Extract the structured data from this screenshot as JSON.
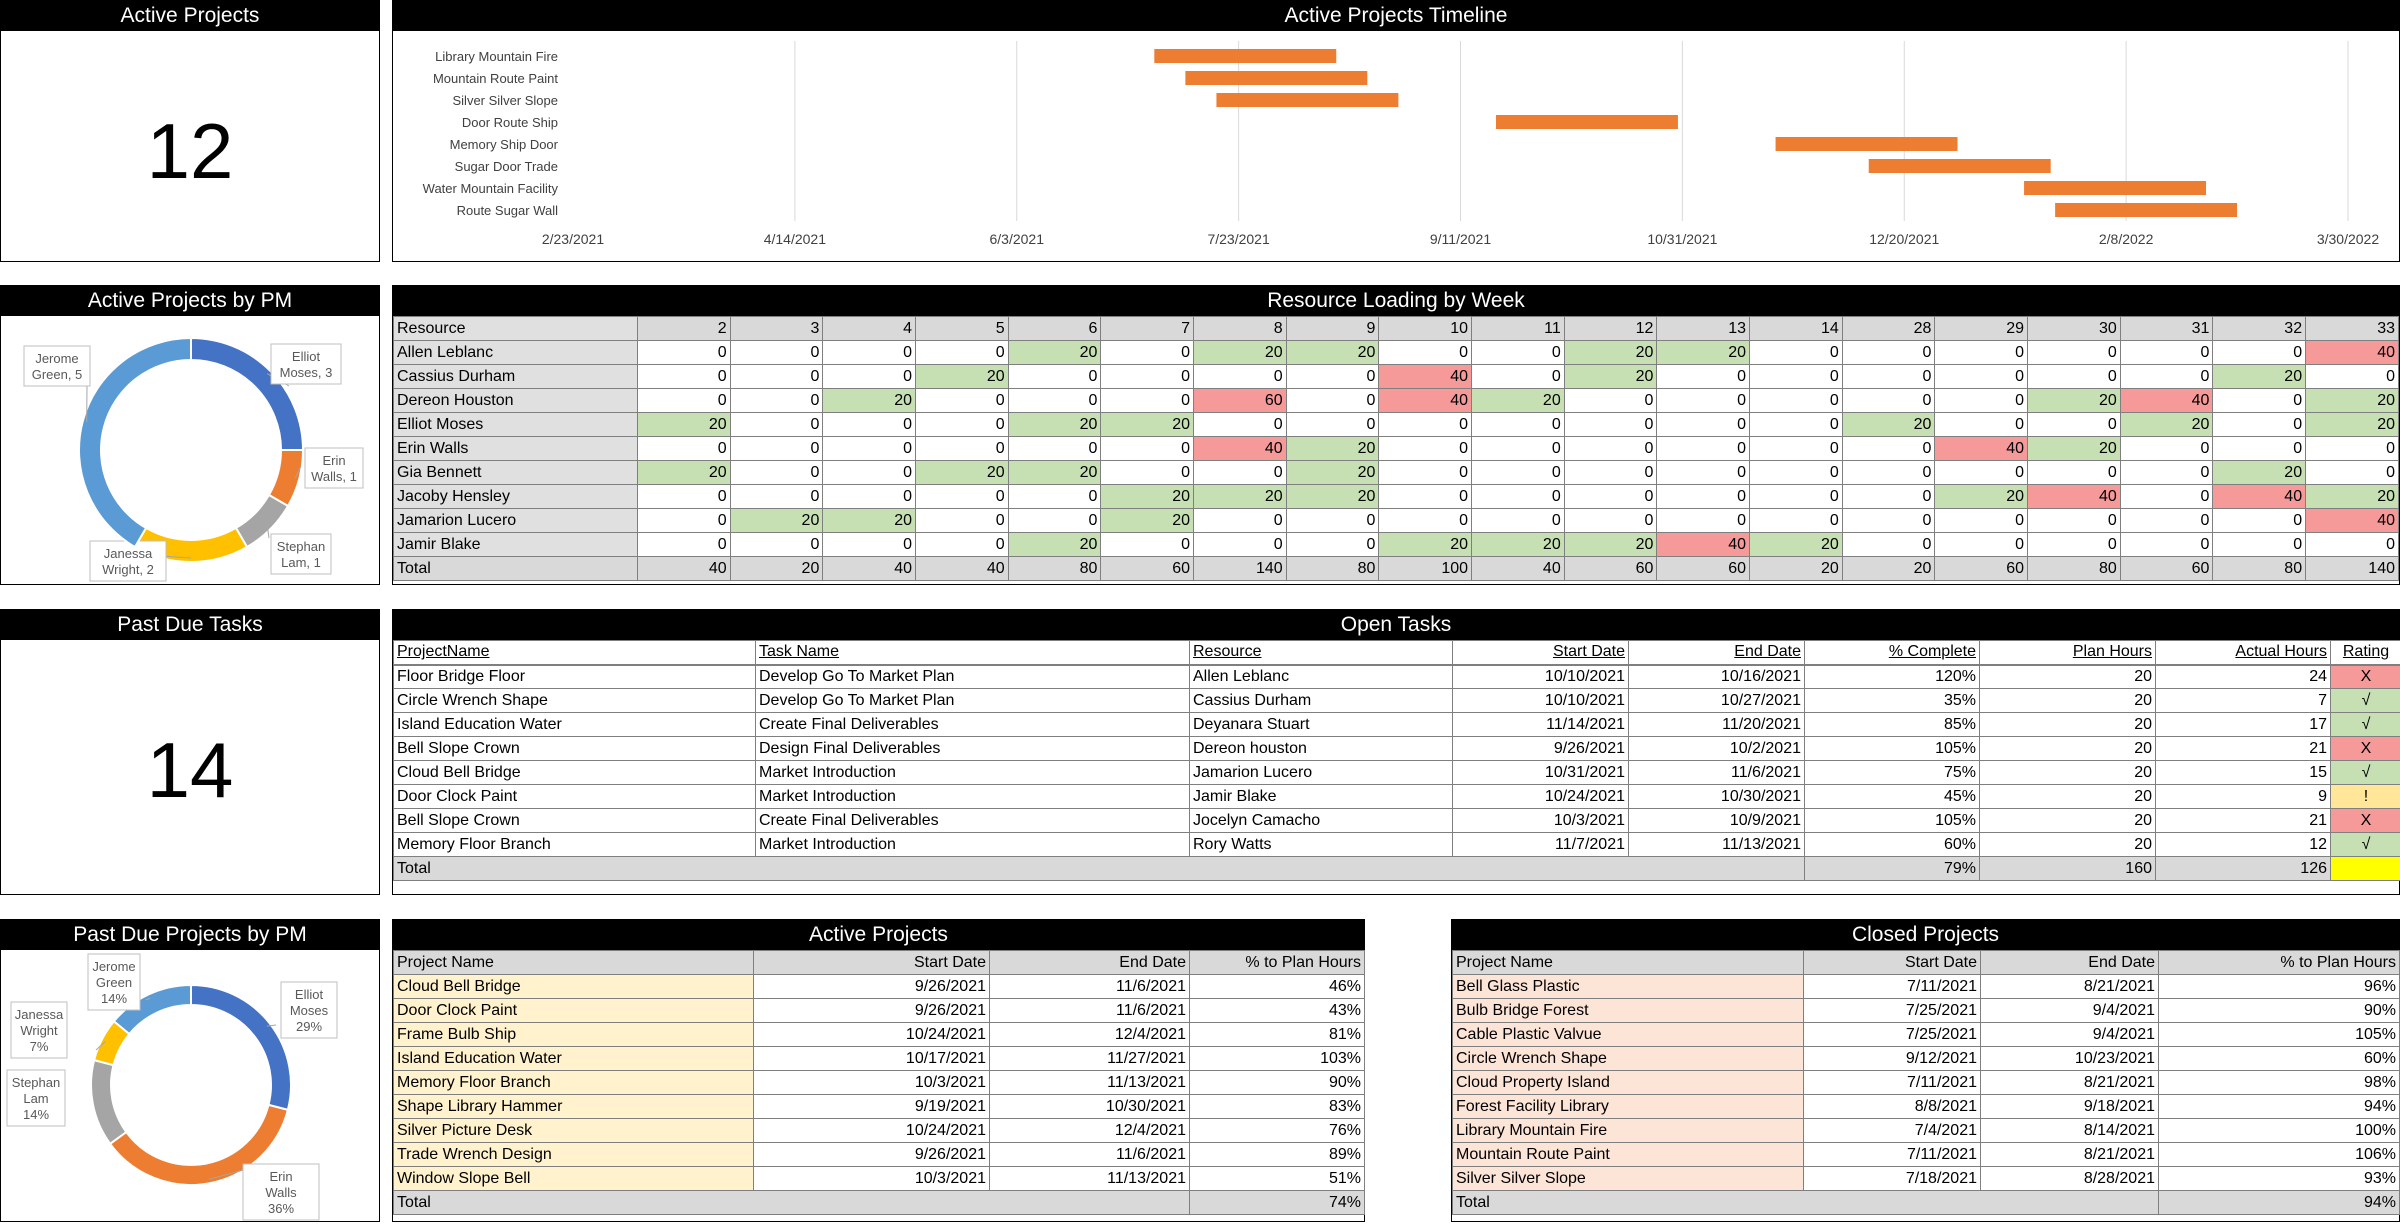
{
  "active_projects_card": {
    "title": "Active Projects",
    "value": "12"
  },
  "timeline": {
    "title": "Active Projects Timeline",
    "ticks": [
      "2/23/2021",
      "4/14/2021",
      "6/3/2021",
      "7/23/2021",
      "9/11/2021",
      "10/31/2021",
      "12/20/2021",
      "2/8/2022",
      "3/30/2022"
    ],
    "x_range": [
      "2021-02-23",
      "2022-03-30"
    ],
    "bar_color": "#ed7d31",
    "projects": [
      {
        "name": "Library Mountain Fire",
        "start": "2021-07-04",
        "end": "2021-08-14"
      },
      {
        "name": "Mountain Route Paint",
        "start": "2021-07-11",
        "end": "2021-08-21"
      },
      {
        "name": "Silver Silver Slope",
        "start": "2021-07-18",
        "end": "2021-08-28"
      },
      {
        "name": "Door Route Ship",
        "start": "2021-09-19",
        "end": "2021-10-30"
      },
      {
        "name": "Memory Ship Door",
        "start": "2021-11-21",
        "end": "2022-01-01"
      },
      {
        "name": "Sugar Door Trade",
        "start": "2021-12-12",
        "end": "2022-01-22"
      },
      {
        "name": "Water Mountain Facility",
        "start": "2022-01-16",
        "end": "2022-02-26"
      },
      {
        "name": "Route Sugar Wall",
        "start": "2022-01-23",
        "end": "2022-03-05"
      }
    ]
  },
  "pm_donut": {
    "title": "Active Projects by PM",
    "slices": [
      {
        "label": "Elliot Moses, 3",
        "value": 3,
        "color": "#4472c4"
      },
      {
        "label": "Erin Walls, 1",
        "value": 1,
        "color": "#ed7d31"
      },
      {
        "label": "Stephan Lam, 1",
        "value": 1,
        "color": "#a5a5a5"
      },
      {
        "label": "Janessa Wright, 2",
        "value": 2,
        "color": "#ffc000"
      },
      {
        "label": "Jerome Green, 5",
        "value": 5,
        "color": "#5b9bd5"
      }
    ]
  },
  "resource_loading": {
    "title": "Resource Loading by Week",
    "header": "Resource",
    "weeks": [
      "2",
      "3",
      "4",
      "5",
      "6",
      "7",
      "8",
      "9",
      "10",
      "11",
      "12",
      "13",
      "14",
      "28",
      "29",
      "30",
      "31",
      "32",
      "33"
    ],
    "rows": [
      {
        "name": "Allen Leblanc",
        "values": [
          0,
          0,
          0,
          0,
          20,
          0,
          20,
          20,
          0,
          0,
          20,
          20,
          0,
          0,
          0,
          0,
          0,
          0,
          40
        ]
      },
      {
        "name": "Cassius Durham",
        "values": [
          0,
          0,
          0,
          20,
          0,
          0,
          0,
          0,
          40,
          0,
          20,
          0,
          0,
          0,
          0,
          0,
          0,
          20,
          0
        ]
      },
      {
        "name": "Dereon Houston",
        "values": [
          0,
          0,
          20,
          0,
          0,
          0,
          60,
          0,
          40,
          20,
          0,
          0,
          0,
          0,
          0,
          20,
          40,
          0,
          20
        ]
      },
      {
        "name": "Elliot Moses",
        "values": [
          20,
          0,
          0,
          0,
          20,
          20,
          0,
          0,
          0,
          0,
          0,
          0,
          0,
          20,
          0,
          0,
          20,
          0,
          20
        ]
      },
      {
        "name": "Erin Walls",
        "values": [
          0,
          0,
          0,
          0,
          0,
          0,
          40,
          20,
          0,
          0,
          0,
          0,
          0,
          0,
          40,
          20,
          0,
          0,
          0
        ]
      },
      {
        "name": "Gia Bennett",
        "values": [
          20,
          0,
          0,
          20,
          20,
          0,
          0,
          20,
          0,
          0,
          0,
          0,
          0,
          0,
          0,
          0,
          0,
          20,
          0
        ]
      },
      {
        "name": "Jacoby Hensley",
        "values": [
          0,
          0,
          0,
          0,
          0,
          20,
          20,
          20,
          0,
          0,
          0,
          0,
          0,
          0,
          20,
          40,
          0,
          40,
          20
        ]
      },
      {
        "name": "Jamarion Lucero",
        "values": [
          0,
          20,
          20,
          0,
          0,
          20,
          0,
          0,
          0,
          0,
          0,
          0,
          0,
          0,
          0,
          0,
          0,
          0,
          40
        ]
      },
      {
        "name": "Jamir Blake",
        "values": [
          0,
          0,
          0,
          0,
          20,
          0,
          0,
          0,
          20,
          20,
          20,
          40,
          20,
          0,
          0,
          0,
          0,
          0,
          0
        ]
      }
    ],
    "total_label": "Total",
    "totals": [
      40,
      20,
      40,
      40,
      80,
      60,
      140,
      80,
      100,
      40,
      60,
      60,
      20,
      20,
      60,
      80,
      60,
      80,
      140
    ]
  },
  "past_due_card": {
    "title": "Past Due Tasks",
    "value": "14"
  },
  "open_tasks": {
    "title": "Open Tasks",
    "headers": [
      "ProjectName",
      "Task Name",
      "Resource",
      "Start Date",
      "End Date",
      "% Complete",
      "Plan Hours",
      "Actual Hours",
      "Rating"
    ],
    "rows": [
      [
        "Floor Bridge Floor",
        "Develop Go To Market Plan",
        "Allen Leblanc",
        "10/10/2021",
        "10/16/2021",
        "120%",
        "20",
        "24",
        "X"
      ],
      [
        "Circle Wrench Shape",
        "Develop Go To Market Plan",
        "Cassius Durham",
        "10/10/2021",
        "10/27/2021",
        "35%",
        "20",
        "7",
        "√"
      ],
      [
        "Island Education Water",
        "Create Final Deliverables",
        "Deyanara Stuart",
        "11/14/2021",
        "11/20/2021",
        "85%",
        "20",
        "17",
        "√"
      ],
      [
        "Bell Slope Crown",
        "Design Final Deliverables",
        "Dereon houston",
        "9/26/2021",
        "10/2/2021",
        "105%",
        "20",
        "21",
        "X"
      ],
      [
        "Cloud Bell Bridge",
        "Market Introduction",
        "Jamarion Lucero",
        "10/31/2021",
        "11/6/2021",
        "75%",
        "20",
        "15",
        "√"
      ],
      [
        "Door Clock Paint",
        "Market Introduction",
        "Jamir Blake",
        "10/24/2021",
        "10/30/2021",
        "45%",
        "20",
        "9",
        "!"
      ],
      [
        "Bell Slope Crown",
        "Create Final Deliverables",
        "Jocelyn Camacho",
        "10/3/2021",
        "10/9/2021",
        "105%",
        "20",
        "21",
        "X"
      ],
      [
        "Memory Floor Branch",
        "Market Introduction",
        "Rory Watts",
        "11/7/2021",
        "11/13/2021",
        "60%",
        "20",
        "12",
        "√"
      ]
    ],
    "total_label": "Total",
    "total_complete": "79%",
    "total_plan": "160",
    "total_actual": "126",
    "rating_colors": {
      "X": "#f59999",
      "√": "#c6e0b4",
      "!": "#ffe699"
    },
    "total_rating_color": "#ffff00"
  },
  "past_due_donut": {
    "title": "Past Due Projects by PM",
    "slices": [
      {
        "label": "Elliot Moses 29%",
        "value": 29,
        "color": "#4472c4"
      },
      {
        "label": "Erin Walls 36%",
        "value": 36,
        "color": "#ed7d31"
      },
      {
        "label": "Stephan Lam 14%",
        "value": 14,
        "color": "#a5a5a5"
      },
      {
        "label": "Janessa Wright 7%",
        "value": 7,
        "color": "#ffc000"
      },
      {
        "label": "Jerome Green 14%",
        "value": 14,
        "color": "#5b9bd5"
      }
    ]
  },
  "active_projects_table": {
    "title": "Active Projects",
    "headers": [
      "Project Name",
      "Start Date",
      "End Date",
      "% to Plan Hours"
    ],
    "rows": [
      [
        "Cloud Bell Bridge",
        "9/26/2021",
        "11/6/2021",
        "46%"
      ],
      [
        "Door Clock Paint",
        "9/26/2021",
        "11/6/2021",
        "43%"
      ],
      [
        "Frame Bulb Ship",
        "10/24/2021",
        "12/4/2021",
        "81%"
      ],
      [
        "Island Education Water",
        "10/17/2021",
        "11/27/2021",
        "103%"
      ],
      [
        "Memory Floor Branch",
        "10/3/2021",
        "11/13/2021",
        "90%"
      ],
      [
        "Shape Library Hammer",
        "9/19/2021",
        "10/30/2021",
        "83%"
      ],
      [
        "Silver Picture Desk",
        "10/24/2021",
        "12/4/2021",
        "76%"
      ],
      [
        "Trade Wrench Design",
        "9/26/2021",
        "11/6/2021",
        "89%"
      ],
      [
        "Window Slope Bell",
        "10/3/2021",
        "11/13/2021",
        "51%"
      ]
    ],
    "total_label": "Total",
    "total_value": "74%"
  },
  "closed_projects_table": {
    "title": "Closed Projects",
    "headers": [
      "Project Name",
      "Start Date",
      "End Date",
      "% to Plan Hours"
    ],
    "rows": [
      [
        "Bell Glass Plastic",
        "7/11/2021",
        "8/21/2021",
        "96%"
      ],
      [
        "Bulb Bridge Forest",
        "7/25/2021",
        "9/4/2021",
        "90%"
      ],
      [
        "Cable Plastic Valvue",
        "7/25/2021",
        "9/4/2021",
        "105%"
      ],
      [
        "Circle Wrench Shape",
        "9/12/2021",
        "10/23/2021",
        "60%"
      ],
      [
        "Cloud Property Island",
        "7/11/2021",
        "8/21/2021",
        "98%"
      ],
      [
        "Forest Facility Library",
        "8/8/2021",
        "9/18/2021",
        "94%"
      ],
      [
        "Library Mountain Fire",
        "7/4/2021",
        "8/14/2021",
        "100%"
      ],
      [
        "Mountain Route Paint",
        "7/11/2021",
        "8/21/2021",
        "106%"
      ],
      [
        "Silver Silver Slope",
        "7/18/2021",
        "8/28/2021",
        "93%"
      ]
    ],
    "total_label": "Total",
    "total_value": "94%"
  }
}
